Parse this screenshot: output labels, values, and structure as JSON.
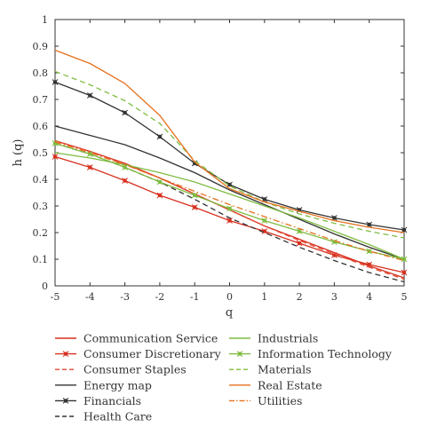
{
  "chart_data": {
    "type": "line",
    "xlabel": "q",
    "ylabel": "h (q)",
    "xlim": [
      -5,
      5
    ],
    "ylim": [
      0,
      1
    ],
    "grid": false,
    "legend_placement": "bottom, two columns, outside plot",
    "x": [
      -5,
      -4,
      -3,
      -2,
      -1,
      0,
      1,
      2,
      3,
      4,
      5
    ],
    "x_tick_labels": [
      "-5",
      "-4",
      "-3",
      "-2",
      "-1",
      "0",
      "1",
      "2",
      "3",
      "4",
      "5"
    ],
    "y_tick_labels": [
      "0",
      "0.1",
      "0.2",
      "0.3",
      "0.4",
      "0.5",
      "0.6",
      "0.7",
      "0.8",
      "0.9",
      "1"
    ],
    "y_ticks": [
      0,
      0.1,
      0.2,
      0.3,
      0.4,
      0.5,
      0.6,
      0.7,
      0.8,
      0.9,
      1
    ],
    "series": [
      {
        "name": "Communication Service",
        "color": "#d7301f",
        "dash": "solid",
        "marker": "none",
        "values": [
          0.545,
          0.505,
          0.46,
          0.405,
          0.345,
          0.285,
          0.225,
          0.175,
          0.125,
          0.075,
          0.03
        ]
      },
      {
        "name": "Consumer Discretionary",
        "color": "#d7301f",
        "dash": "solid",
        "marker": "star",
        "values": [
          0.485,
          0.445,
          0.395,
          0.34,
          0.295,
          0.245,
          0.205,
          0.16,
          0.115,
          0.08,
          0.05
        ]
      },
      {
        "name": "Consumer Staples",
        "color": "#e34a33",
        "dash": "dashed",
        "marker": "none",
        "values": [
          0.545,
          0.505,
          0.455,
          0.405,
          0.345,
          0.285,
          0.225,
          0.17,
          0.12,
          0.07,
          0.025
        ]
      },
      {
        "name": "Energy map",
        "color": "#333333",
        "dash": "solid",
        "marker": "none",
        "values": [
          0.6,
          0.565,
          0.53,
          0.48,
          0.425,
          0.36,
          0.305,
          0.25,
          0.195,
          0.145,
          0.1
        ]
      },
      {
        "name": "Financials",
        "color": "#333333",
        "dash": "solid",
        "marker": "star",
        "values": [
          0.765,
          0.715,
          0.65,
          0.56,
          0.46,
          0.38,
          0.325,
          0.285,
          0.255,
          0.23,
          0.21
        ]
      },
      {
        "name": "Health Care",
        "color": "#333333",
        "dash": "dashed",
        "marker": "none",
        "values": [
          0.535,
          0.495,
          0.445,
          0.39,
          0.325,
          0.255,
          0.2,
          0.145,
          0.095,
          0.05,
          0.015
        ]
      },
      {
        "name": "Industrials",
        "color": "#7fbc41",
        "dash": "solid",
        "marker": "none",
        "values": [
          0.5,
          0.48,
          0.455,
          0.425,
          0.39,
          0.345,
          0.3,
          0.255,
          0.205,
          0.155,
          0.1
        ]
      },
      {
        "name": "Information Technology",
        "color": "#7fbc41",
        "dash": "solid",
        "marker": "star",
        "values": [
          0.535,
          0.495,
          0.445,
          0.39,
          0.34,
          0.29,
          0.245,
          0.205,
          0.165,
          0.13,
          0.1
        ]
      },
      {
        "name": "Materials",
        "color": "#7fbc41",
        "dash": "dashed",
        "marker": "none",
        "values": [
          0.805,
          0.755,
          0.695,
          0.61,
          0.47,
          0.375,
          0.315,
          0.27,
          0.235,
          0.205,
          0.18
        ]
      },
      {
        "name": "Real Estate",
        "color": "#e6711c",
        "dash": "solid",
        "marker": "none",
        "values": [
          0.885,
          0.835,
          0.76,
          0.64,
          0.465,
          0.365,
          0.315,
          0.28,
          0.245,
          0.22,
          0.2
        ]
      },
      {
        "name": "Utilities",
        "color": "#e6711c",
        "dash": "dashdot",
        "marker": "none",
        "values": [
          0.54,
          0.5,
          0.455,
          0.405,
          0.355,
          0.305,
          0.26,
          0.215,
          0.17,
          0.13,
          0.095
        ]
      }
    ]
  }
}
